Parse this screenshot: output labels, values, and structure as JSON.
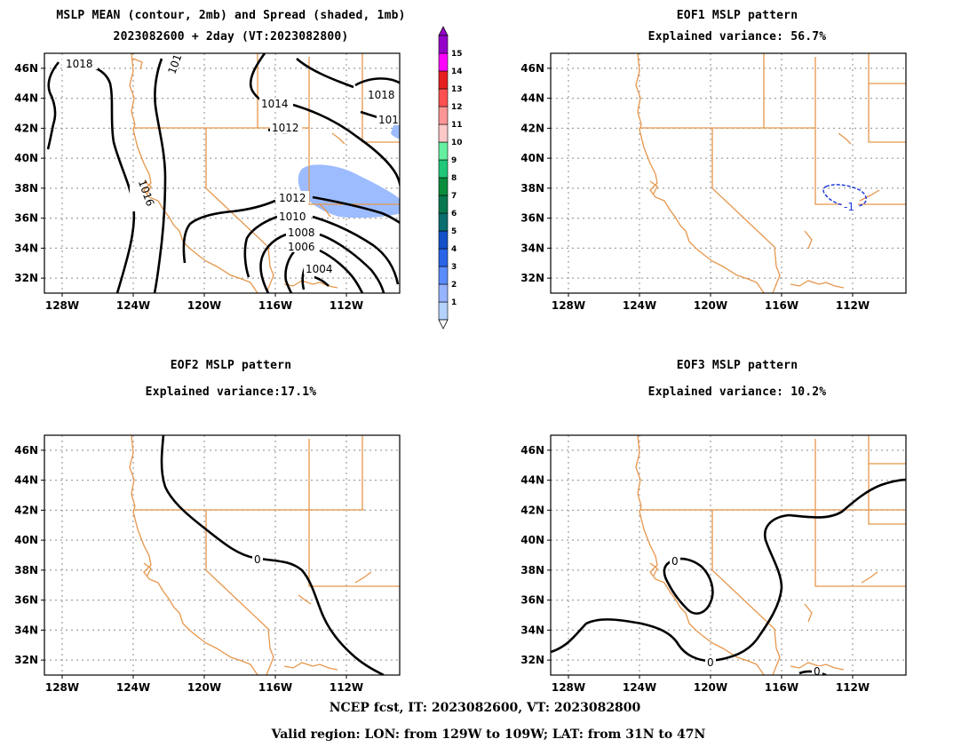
{
  "panels": [
    {
      "id": "p1",
      "title_line1": "MSLP MEAN (contour, 2mb) and Spread (shaded, 1mb)",
      "title_line2": "2023082600 + 2day (VT:2023082800)",
      "contour_labels": [
        "1018",
        "101",
        "1014",
        "1012",
        "1018",
        "101",
        "1016",
        "1012",
        "1010",
        "1008",
        "1006",
        "1004"
      ]
    },
    {
      "id": "p2",
      "title_line1": "EOF1 MSLP pattern",
      "title_line2": "Explained variance: 56.7%",
      "contour_labels": [
        "-1"
      ]
    },
    {
      "id": "p3",
      "title_line1": "EOF2 MSLP pattern",
      "title_line2": "Explained variance:17.1%",
      "contour_labels": [
        "0"
      ]
    },
    {
      "id": "p4",
      "title_line1": "EOF3 MSLP pattern",
      "title_line2": "Explained variance: 10.2%",
      "contour_labels": [
        "0",
        "0",
        "0"
      ]
    }
  ],
  "map_extent": {
    "lon": [
      -129,
      -109
    ],
    "lat": [
      31,
      47
    ]
  },
  "lat_ticks": [
    "46N",
    "44N",
    "42N",
    "40N",
    "38N",
    "36N",
    "34N",
    "32N"
  ],
  "lat_values": [
    46,
    44,
    42,
    40,
    38,
    36,
    34,
    32
  ],
  "lon_ticks": [
    "128W",
    "124W",
    "120W",
    "116W",
    "112W"
  ],
  "lon_values": [
    -128,
    -124,
    -120,
    -116,
    -112
  ],
  "colorbar": {
    "labels": [
      "1",
      "2",
      "3",
      "4",
      "5",
      "6",
      "7",
      "8",
      "9",
      "10",
      "11",
      "12",
      "13",
      "14",
      "15"
    ],
    "colors": [
      "#b4d2ff",
      "#96b4ff",
      "#5a8cff",
      "#2864e6",
      "#1450c8",
      "#0a6e6e",
      "#087850",
      "#0a8c3c",
      "#1ec878",
      "#64f0a0",
      "#ffc8c8",
      "#ff9696",
      "#ff5050",
      "#e61e1e",
      "#ff00ff",
      "#9600c8"
    ]
  },
  "colors": {
    "state_lines": "#e6964b",
    "grid": "#a0a0a0",
    "contour": "#000000",
    "eof1_contour": "#1e3cdc"
  },
  "footer_line1": "NCEP fcst, IT: 2023082600, VT: 2023082800",
  "footer_line2": "Valid region: LON: from 129W to 109W; LAT: from 31N to 47N"
}
